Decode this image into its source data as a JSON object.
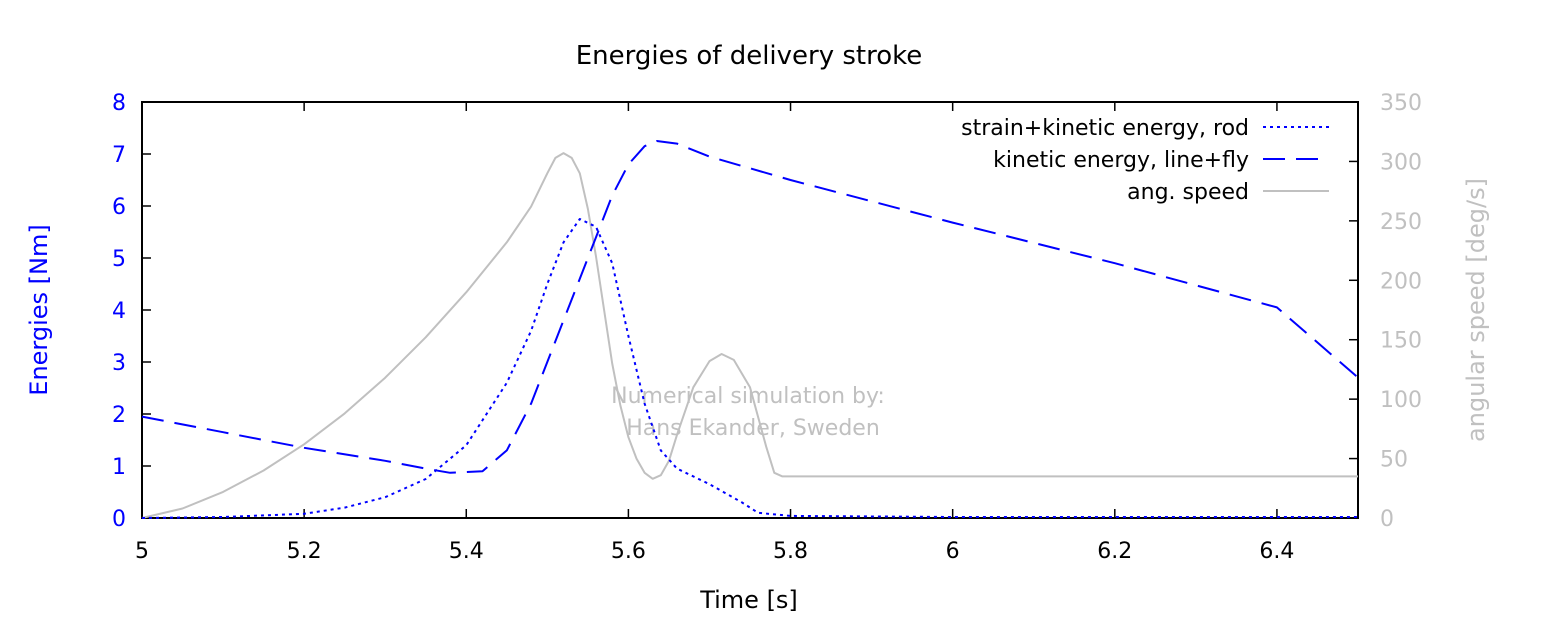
{
  "chart_data": {
    "type": "line",
    "title": "Energies of delivery stroke",
    "xlabel": "Time [s]",
    "ylabel": "Energies [Nm]",
    "y2label": "angular speed [deg/s]",
    "xlim": [
      5,
      6.5
    ],
    "ylim": [
      0,
      8
    ],
    "y2lim": [
      0,
      350
    ],
    "x_ticks": [
      "5",
      "5.2",
      "5.4",
      "5.6",
      "5.8",
      "6",
      "6.2",
      "6.4"
    ],
    "y_ticks": [
      "0",
      "1",
      "2",
      "3",
      "4",
      "5",
      "6",
      "7",
      "8"
    ],
    "y2_ticks": [
      "0",
      "50",
      "100",
      "150",
      "200",
      "250",
      "300",
      "350"
    ],
    "legend_position": "top-right",
    "annotation": [
      "Numerical simulation by:",
      "Hans Ekander, Sweden"
    ],
    "series": [
      {
        "name": "strain+kinetic energy, rod",
        "axis": "left",
        "style": "dotted",
        "color": "#0000ff",
        "points": [
          [
            5.0,
            0.0
          ],
          [
            5.1,
            0.02
          ],
          [
            5.2,
            0.08
          ],
          [
            5.25,
            0.2
          ],
          [
            5.3,
            0.4
          ],
          [
            5.35,
            0.75
          ],
          [
            5.4,
            1.4
          ],
          [
            5.45,
            2.6
          ],
          [
            5.48,
            3.6
          ],
          [
            5.5,
            4.5
          ],
          [
            5.52,
            5.3
          ],
          [
            5.54,
            5.75
          ],
          [
            5.56,
            5.6
          ],
          [
            5.58,
            4.9
          ],
          [
            5.6,
            3.5
          ],
          [
            5.62,
            2.2
          ],
          [
            5.64,
            1.3
          ],
          [
            5.66,
            0.95
          ],
          [
            5.7,
            0.65
          ],
          [
            5.74,
            0.3
          ],
          [
            5.76,
            0.1
          ],
          [
            5.8,
            0.04
          ],
          [
            6.0,
            0.02
          ],
          [
            6.5,
            0.02
          ]
        ]
      },
      {
        "name": "kinetic energy, line+fly",
        "axis": "left",
        "style": "dashed",
        "color": "#0000ff",
        "points": [
          [
            5.0,
            1.95
          ],
          [
            5.1,
            1.65
          ],
          [
            5.2,
            1.35
          ],
          [
            5.3,
            1.1
          ],
          [
            5.35,
            0.95
          ],
          [
            5.38,
            0.87
          ],
          [
            5.42,
            0.9
          ],
          [
            5.45,
            1.3
          ],
          [
            5.48,
            2.2
          ],
          [
            5.5,
            3.0
          ],
          [
            5.52,
            3.8
          ],
          [
            5.54,
            4.6
          ],
          [
            5.56,
            5.4
          ],
          [
            5.58,
            6.2
          ],
          [
            5.6,
            6.8
          ],
          [
            5.62,
            7.15
          ],
          [
            5.635,
            7.25
          ],
          [
            5.66,
            7.2
          ],
          [
            5.7,
            6.95
          ],
          [
            5.8,
            6.5
          ],
          [
            6.0,
            5.68
          ],
          [
            6.2,
            4.9
          ],
          [
            6.4,
            4.05
          ],
          [
            6.5,
            2.7
          ]
        ]
      },
      {
        "name": "ang. speed",
        "axis": "right",
        "style": "solid",
        "color": "#c0c0c0",
        "points": [
          [
            5.0,
            0
          ],
          [
            5.05,
            8
          ],
          [
            5.1,
            22
          ],
          [
            5.15,
            40
          ],
          [
            5.2,
            62
          ],
          [
            5.25,
            88
          ],
          [
            5.3,
            118
          ],
          [
            5.35,
            152
          ],
          [
            5.4,
            190
          ],
          [
            5.45,
            232
          ],
          [
            5.48,
            262
          ],
          [
            5.5,
            290
          ],
          [
            5.51,
            303
          ],
          [
            5.52,
            307
          ],
          [
            5.53,
            303
          ],
          [
            5.54,
            290
          ],
          [
            5.55,
            260
          ],
          [
            5.56,
            220
          ],
          [
            5.57,
            175
          ],
          [
            5.58,
            130
          ],
          [
            5.59,
            95
          ],
          [
            5.6,
            68
          ],
          [
            5.61,
            50
          ],
          [
            5.62,
            38
          ],
          [
            5.63,
            33
          ],
          [
            5.64,
            36
          ],
          [
            5.65,
            48
          ],
          [
            5.66,
            70
          ],
          [
            5.68,
            110
          ],
          [
            5.7,
            132
          ],
          [
            5.715,
            138
          ],
          [
            5.73,
            133
          ],
          [
            5.75,
            110
          ],
          [
            5.77,
            60
          ],
          [
            5.78,
            38
          ],
          [
            5.79,
            35
          ],
          [
            6.0,
            35
          ],
          [
            6.5,
            35
          ]
        ]
      }
    ]
  }
}
